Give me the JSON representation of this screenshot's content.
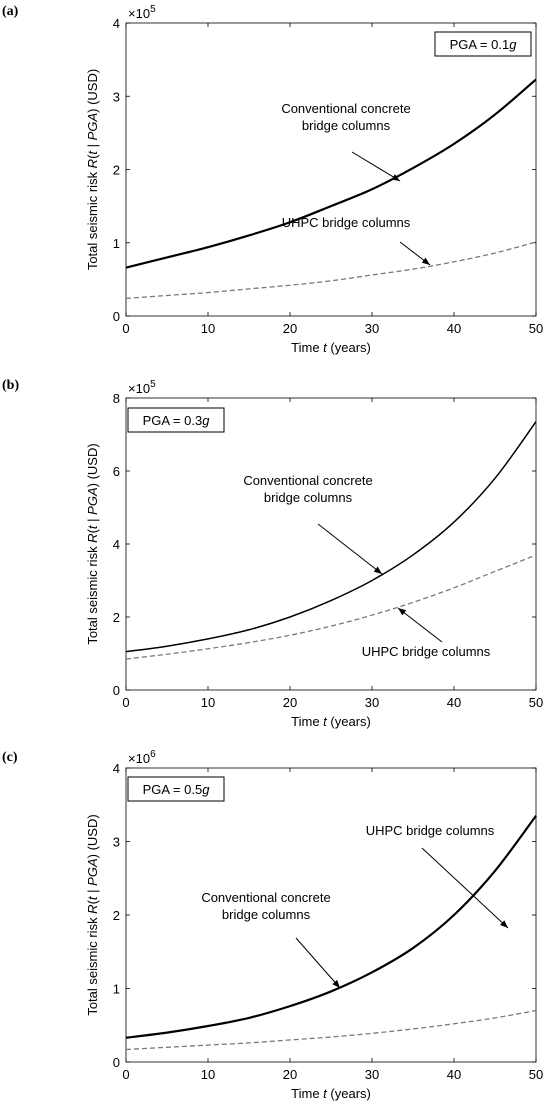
{
  "chart_data": [
    {
      "panel_label": "(a)",
      "type": "line",
      "exponent": "5",
      "xlabel": {
        "before": "Time ",
        "italic": "t",
        "after": " (years)"
      },
      "ylabel": {
        "before": "Total seismic risk ",
        "R": "R",
        "open": "(",
        "t": "t",
        "mid": " | ",
        "pga": "PGA",
        "after": ") (USD)"
      },
      "xlim": [
        0,
        50
      ],
      "ylim": [
        0,
        4
      ],
      "xticks": [
        0,
        10,
        20,
        30,
        40,
        50
      ],
      "yticks": [
        0,
        1,
        2,
        3,
        4
      ],
      "legend": {
        "text": "PGA = 0.1",
        "italic": "g",
        "position": "top-right"
      },
      "series": [
        {
          "label_lines": [
            "Conventional concrete",
            "bridge columns"
          ],
          "style": "solid",
          "x": [
            0,
            5,
            10,
            15,
            20,
            25,
            30,
            35,
            40,
            45,
            50
          ],
          "y": [
            0.66,
            0.8,
            0.94,
            1.1,
            1.28,
            1.5,
            1.73,
            2.02,
            2.35,
            2.75,
            3.23
          ]
        },
        {
          "label_lines": [
            "UHPC bridge columns"
          ],
          "style": "dashed",
          "x": [
            0,
            5,
            10,
            15,
            20,
            25,
            30,
            35,
            40,
            45,
            50
          ],
          "y": [
            0.24,
            0.28,
            0.32,
            0.37,
            0.42,
            0.48,
            0.56,
            0.64,
            0.74,
            0.86,
            1.01
          ]
        }
      ]
    },
    {
      "panel_label": "(b)",
      "type": "line",
      "exponent": "5",
      "xlabel": {
        "before": "Time ",
        "italic": "t",
        "after": " (years)"
      },
      "ylabel": {
        "before": "Total seismic risk ",
        "R": "R",
        "open": "(",
        "t": "t",
        "mid": " | ",
        "pga": "PGA",
        "after": ") (USD)"
      },
      "xlim": [
        0,
        50
      ],
      "ylim": [
        0,
        8
      ],
      "xticks": [
        0,
        10,
        20,
        30,
        40,
        50
      ],
      "yticks": [
        0,
        2,
        4,
        6,
        8
      ],
      "legend": {
        "text": "PGA = 0.3",
        "italic": "g",
        "position": "top-left"
      },
      "series": [
        {
          "label_lines": [
            "Conventional concrete",
            "bridge columns"
          ],
          "style": "solid",
          "x": [
            0,
            5,
            10,
            15,
            20,
            25,
            30,
            35,
            40,
            45,
            50
          ],
          "y": [
            1.05,
            1.2,
            1.4,
            1.65,
            2.0,
            2.45,
            3.0,
            3.7,
            4.6,
            5.8,
            7.35
          ]
        },
        {
          "label_lines": [
            "UHPC bridge columns"
          ],
          "style": "dashed",
          "x": [
            0,
            5,
            10,
            15,
            20,
            25,
            30,
            35,
            40,
            45,
            50
          ],
          "y": [
            0.85,
            0.98,
            1.13,
            1.3,
            1.5,
            1.75,
            2.05,
            2.4,
            2.8,
            3.25,
            3.7
          ]
        }
      ]
    },
    {
      "panel_label": "(c)",
      "type": "line",
      "exponent": "6",
      "xlabel": {
        "before": "Time ",
        "italic": "t",
        "after": " (years)"
      },
      "ylabel": {
        "before": "Total seismic risk ",
        "R": "R",
        "open": "(",
        "t": "t",
        "mid": " | ",
        "pga": "PGA",
        "after": ") (USD)"
      },
      "xlim": [
        0,
        50
      ],
      "ylim": [
        0,
        4
      ],
      "xticks": [
        0,
        10,
        20,
        30,
        40,
        50
      ],
      "yticks": [
        0,
        1,
        2,
        3,
        4
      ],
      "legend": {
        "text": "PGA = 0.5",
        "italic": "g",
        "position": "top-left"
      },
      "series": [
        {
          "label_lines": [
            "Conventional concrete",
            "bridge columns"
          ],
          "style": "solid",
          "x": [
            0,
            5,
            10,
            15,
            20,
            25,
            30,
            35,
            40,
            45,
            50
          ],
          "y": [
            0.33,
            0.4,
            0.49,
            0.6,
            0.76,
            0.96,
            1.22,
            1.55,
            2.0,
            2.6,
            3.35
          ]
        },
        {
          "label_lines": [
            "UHPC bridge columns"
          ],
          "style": "dashed",
          "x": [
            0,
            5,
            10,
            15,
            20,
            25,
            30,
            35,
            40,
            45,
            50
          ],
          "y": [
            0.17,
            0.2,
            0.23,
            0.26,
            0.3,
            0.34,
            0.39,
            0.45,
            0.52,
            0.6,
            0.7
          ]
        }
      ]
    }
  ]
}
